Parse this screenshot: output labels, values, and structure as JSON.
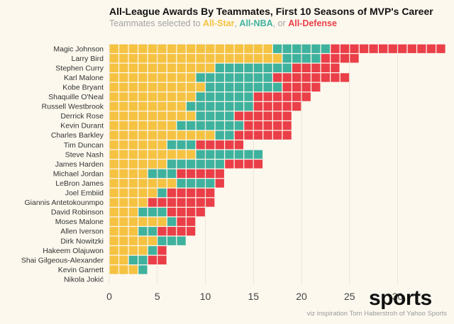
{
  "title": "All-League Awards By Teammates, First 10 Seasons of MVP's Career",
  "subtitle": {
    "prefix": "Teammates selected to ",
    "sep1": ", ",
    "sep2": ", or ",
    "all_star": "All-Star",
    "all_nba": "All-NBA",
    "all_defense": "All-Defense"
  },
  "colors": {
    "all_star": "#f5c242",
    "all_nba": "#3fb29e",
    "all_defense": "#ea3f48",
    "background": "#fcf8ee",
    "grid": "#ece6d8"
  },
  "brand": "sports",
  "credit": "viz inspiration Tom Haberstroh of Yahoo Sports",
  "chart_data": {
    "type": "bar",
    "orientation": "horizontal",
    "stacked": true,
    "unit_waffle": true,
    "xlim": [
      0,
      35
    ],
    "x_ticks": [
      0,
      5,
      10,
      15,
      20,
      25,
      30
    ],
    "grid": true,
    "categories": [
      "Magic Johnson",
      "Larry Bird",
      "Stephen Curry",
      "Karl Malone",
      "Kobe Bryant",
      "Shaquille O'Neal",
      "Russell Westbrook",
      "Derrick Rose",
      "Kevin Durant",
      "Charles Barkley",
      "Tim Duncan",
      "Steve Nash",
      "James Harden",
      "Michael Jordan",
      "LeBron James",
      "Joel Embiid",
      "Giannis Antetokounmpo",
      "David Robinson",
      "Moses Malone",
      "Allen Iverson",
      "Dirk Nowitzki",
      "Hakeem Olajuwon",
      "Shai Gilgeous-Alexander",
      "Kevin Garnett",
      "Nikola Jokić"
    ],
    "series": [
      {
        "name": "All-Star",
        "values": [
          17,
          18,
          11,
          9,
          10,
          9,
          8,
          9,
          7,
          11,
          6,
          9,
          6,
          4,
          7,
          5,
          4,
          3,
          6,
          3,
          5,
          4,
          2,
          3,
          0
        ]
      },
      {
        "name": "All-NBA",
        "values": [
          6,
          4,
          8,
          8,
          8,
          6,
          7,
          4,
          7,
          2,
          3,
          7,
          6,
          3,
          4,
          1,
          0,
          3,
          1,
          2,
          3,
          1,
          2,
          1,
          0
        ]
      },
      {
        "name": "All-Defense",
        "values": [
          12,
          4,
          5,
          8,
          4,
          6,
          5,
          6,
          5,
          6,
          5,
          0,
          4,
          5,
          1,
          5,
          7,
          4,
          2,
          4,
          0,
          1,
          2,
          0,
          0
        ]
      }
    ]
  }
}
